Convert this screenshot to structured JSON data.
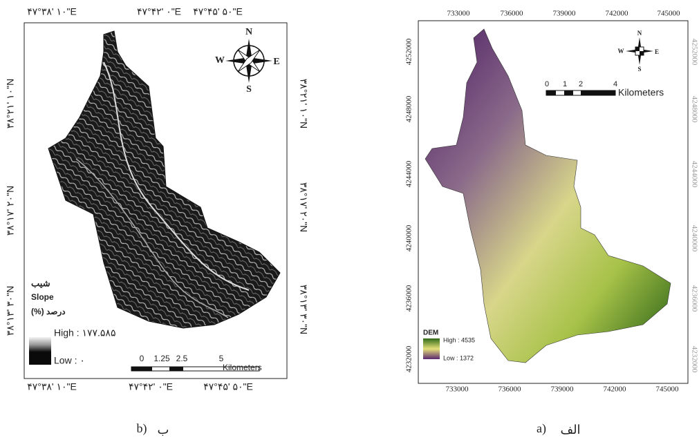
{
  "panel_b": {
    "caption": "b)",
    "caption_fa": "ب",
    "top_labels": [
      "۴۷°۳۸' ۱۰\"E",
      "۴۷°۴۲' ۰\"E",
      "۴۷°۴۵' ۵۰\"E"
    ],
    "bottom_labels": [
      "۴۷°۳۸' ۱۰\"E",
      "۴۷°۴۲' ۰\"E",
      "۴۷°۴۵' ۵۰\"E"
    ],
    "left_labels": [
      "۳۸°۲۱' ۱۰\"N",
      "۳۸°۱۷' ۲۰\"N",
      "۳۸°۱۳' ۳۰\"N"
    ],
    "right_labels": [
      "۳۸°۲۱' ۱۰\"N",
      "۳۸°۱۷' ۲۰\"N",
      "۳۸°۱۳' ۳۰\"N"
    ],
    "compass": {
      "n": "N",
      "e": "E",
      "s": "S",
      "w": "W"
    },
    "legend": {
      "title_fa": "شیب",
      "title": "Slope",
      "unit": "(%) درصد",
      "high": "High : ۱۷۷.۵۸۵",
      "low": "Low : ۰"
    },
    "scale": {
      "ticks": [
        0,
        1.25,
        2.5,
        5
      ],
      "unit": "Kilometers"
    }
  },
  "panel_a": {
    "caption": "a)",
    "caption_fa": "الف",
    "x_ticks_top": [
      733000,
      736000,
      739000,
      742000,
      745000
    ],
    "x_ticks_bottom": [
      733000,
      736000,
      739000,
      742000,
      745000
    ],
    "y_ticks_left": [
      4252000,
      4248000,
      4244000,
      4240000,
      4236000,
      4232000
    ],
    "y_ticks_right": [
      4252000,
      4248000,
      4244000,
      4240000,
      4236000,
      4232000
    ],
    "compass": {
      "n": "N",
      "e": "E",
      "s": "S",
      "w": "W"
    },
    "legend": {
      "title": "DEM",
      "high": "High : 4535",
      "low": "Low : 1372"
    },
    "scale": {
      "ticks": [
        0,
        1,
        2,
        4
      ],
      "unit": "Kilometers"
    }
  }
}
